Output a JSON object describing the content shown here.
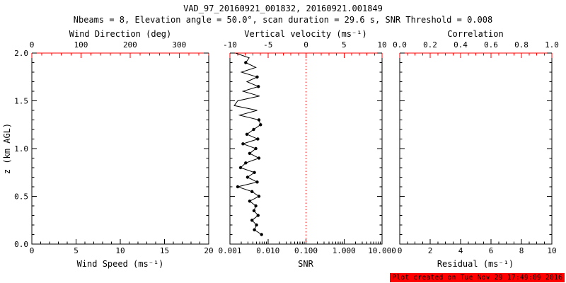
{
  "header": {
    "title": "VAD_97_20160921_001832, 20160921.001849",
    "subtitle": "Nbeams = 8, Elevation angle = 50.0°, scan duration = 29.6 s, SNR Threshold = 0.008"
  },
  "footer": {
    "created_note": "Plot created on Tue Nov 29 17:49:09 2016"
  },
  "colors": {
    "top_axis": "#ff0000",
    "axis": "#000000",
    "data": "#000000",
    "refline": "#ff0000",
    "footer_bg": "#ff0000"
  },
  "chart_data": [
    {
      "type": "line",
      "name": "wind-speed-direction",
      "xlabel": "Wind Speed (ms⁻¹)",
      "xlim": [
        0,
        20
      ],
      "x_ticks": {
        "values": [
          0,
          5,
          10,
          15,
          20
        ],
        "labels": [
          "0",
          "5",
          "10",
          "15",
          "20"
        ],
        "minor_div": 5
      },
      "top_label": "Wind Direction (deg)",
      "top_lim": [
        0,
        360
      ],
      "top_ticks": {
        "values": [
          0,
          100,
          200,
          300
        ],
        "labels": [
          "0",
          "100",
          "200",
          "300"
        ],
        "minor_div": 5
      },
      "ylabel": "z (km AGL)",
      "ylim": [
        0,
        2
      ],
      "y_ticks": {
        "values": [
          0,
          0.5,
          1,
          1.5,
          2
        ],
        "labels": [
          "0.0",
          "0.5",
          "1.0",
          "1.5",
          "2.0"
        ],
        "minor_div": 5,
        "show_labels": true
      },
      "series": []
    },
    {
      "type": "line",
      "name": "snr-vertical-velocity",
      "xlabel": "SNR",
      "xscale": "log",
      "xlim": [
        0.001,
        10
      ],
      "x_ticks": {
        "values": [
          0.001,
          0.01,
          0.1,
          1,
          10
        ],
        "labels": [
          "0.001",
          "0.010",
          "0.100",
          "1.000",
          "10.000"
        ],
        "log_minor": true
      },
      "top_label": "Vertical velocity (ms⁻¹)",
      "top_lim": [
        -10,
        10
      ],
      "top_ticks": {
        "values": [
          -10,
          -5,
          0,
          5,
          10
        ],
        "labels": [
          "-10",
          "-5",
          "0",
          "5",
          "10"
        ],
        "minor_div": 5
      },
      "ylim": [
        0,
        2
      ],
      "y_ticks": {
        "values": [
          0,
          0.5,
          1,
          1.5,
          2
        ],
        "labels": [],
        "minor_div": 5,
        "show_labels": false
      },
      "refline": {
        "axis": "top",
        "value": 0,
        "style": "dotted"
      },
      "series": [
        {
          "name": "snr-profile",
          "marker": "circle",
          "z_km": [
            2.0,
            1.95,
            1.9,
            1.85,
            1.8,
            1.75,
            1.7,
            1.65,
            1.6,
            1.55,
            1.5,
            1.45,
            1.4,
            1.35,
            1.3,
            1.25,
            1.2,
            1.15,
            1.1,
            1.05,
            1.0,
            0.95,
            0.9,
            0.85,
            0.8,
            0.75,
            0.7,
            0.65,
            0.6,
            0.55,
            0.5,
            0.45,
            0.4,
            0.35,
            0.3,
            0.25,
            0.2,
            0.15,
            0.1
          ],
          "snr": [
            0.0014,
            0.0032,
            0.0026,
            0.0048,
            0.002,
            0.0052,
            0.0028,
            0.0056,
            0.0022,
            0.006,
            0.0016,
            0.0013,
            0.0052,
            0.0018,
            0.0058,
            0.0064,
            0.0042,
            0.0028,
            0.0054,
            0.0022,
            0.0048,
            0.0033,
            0.0058,
            0.0026,
            0.0019,
            0.0044,
            0.0029,
            0.0052,
            0.0016,
            0.0038,
            0.0058,
            0.0033,
            0.0048,
            0.0043,
            0.0055,
            0.0038,
            0.005,
            0.0044,
            0.0068
          ],
          "has_marker": [
            false,
            false,
            true,
            false,
            false,
            true,
            false,
            true,
            false,
            false,
            false,
            false,
            false,
            false,
            true,
            true,
            true,
            true,
            true,
            true,
            true,
            true,
            true,
            true,
            true,
            true,
            true,
            true,
            true,
            true,
            true,
            true,
            true,
            true,
            true,
            true,
            true,
            true,
            true
          ]
        }
      ]
    },
    {
      "type": "line",
      "name": "residual-correlation",
      "xlabel": "Residual (ms⁻¹)",
      "xlim": [
        0,
        10
      ],
      "x_ticks": {
        "values": [
          0,
          2,
          4,
          6,
          8,
          10
        ],
        "labels": [
          "0",
          "2",
          "4",
          "6",
          "8",
          "10"
        ],
        "minor_div": 4
      },
      "top_label": "Correlation",
      "top_lim": [
        0,
        1
      ],
      "top_ticks": {
        "values": [
          0,
          0.2,
          0.4,
          0.6,
          0.8,
          1.0
        ],
        "labels": [
          "0.0",
          "0.2",
          "0.4",
          "0.6",
          "0.8",
          "1.0"
        ],
        "minor_div": 4
      },
      "ylim": [
        0,
        2
      ],
      "y_ticks": {
        "values": [
          0,
          0.5,
          1,
          1.5,
          2
        ],
        "labels": [],
        "minor_div": 5,
        "show_labels": false
      },
      "series": []
    }
  ]
}
